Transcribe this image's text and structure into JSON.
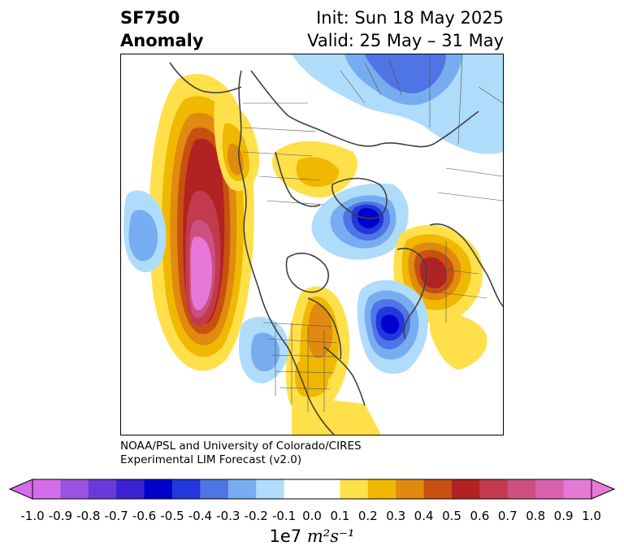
{
  "header": {
    "title_line1": "SF750",
    "title_line2": "Anomaly",
    "init_text": "Init: Sun 18 May 2025",
    "valid_text": "Valid: 25 May – 31 May"
  },
  "credit": {
    "line1": "NOAA/PSL and University of Colorado/CIRES",
    "line2": "Experimental LIM Forecast (v2.0)"
  },
  "colorbar": {
    "levels": [
      "-1.0",
      "-0.9",
      "-0.8",
      "-0.7",
      "-0.6",
      "-0.5",
      "-0.4",
      "-0.3",
      "-0.2",
      "-0.1",
      "0.0",
      "0.1",
      "0.2",
      "0.3",
      "0.4",
      "0.5",
      "0.6",
      "0.7",
      "0.8",
      "0.9",
      "1.0"
    ],
    "colors": [
      "#d46ee8",
      "#9b52e0",
      "#6a3ad8",
      "#3a22d0",
      "#0000cd",
      "#2238dc",
      "#4f74e6",
      "#77adf0",
      "#b0dcfb",
      "#ffffff",
      "#ffffff",
      "#ffe04a",
      "#f0b800",
      "#e08a10",
      "#c85010",
      "#b22222",
      "#c33a4e",
      "#cc5080",
      "#d862b0",
      "#e878d8"
    ],
    "extend_low_color": "#d46ee8",
    "extend_high_color": "#e878d8",
    "units_text": "1e7",
    "units_math": "m²s⁻¹"
  },
  "map": {
    "projection": "north-polar-stereographic",
    "field": "750 hPa streamfunction anomaly"
  }
}
